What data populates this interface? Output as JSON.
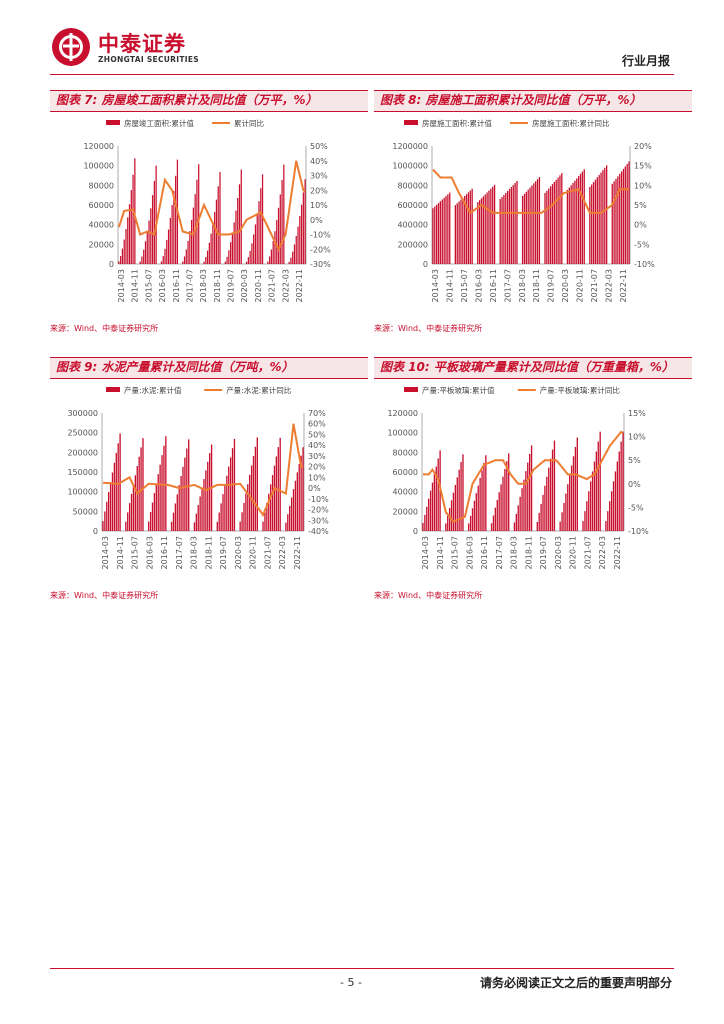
{
  "header": {
    "company_cn": "中泰证券",
    "company_en": "ZHONGTAI SECURITIES",
    "report_type": "行业月报"
  },
  "charts": [
    {
      "title": "图表 7: 房屋竣工面积累计及同比值（万平，%）",
      "source": "来源：Wind、中泰证券研究所",
      "bar_name": "房屋竣工面积:累计值",
      "line_name": "累计同比",
      "left_ticks": [
        "0",
        "20000",
        "40000",
        "60000",
        "80000",
        "100000",
        "120000"
      ],
      "right_ticks": [
        "-30%",
        "-20%",
        "-10%",
        "0%",
        "10%",
        "20%",
        "30%",
        "40%",
        "50%"
      ],
      "x_ticks": [
        "2014-03",
        "2014-11",
        "2015-07",
        "2016-03",
        "2016-11",
        "2017-07",
        "2018-03",
        "2018-11",
        "2019-07",
        "2020-03",
        "2020-11",
        "2021-07",
        "2022-03",
        "2022-11"
      ]
    },
    {
      "title": "图表 8: 房屋施工面积累计及同比值（万平，%）",
      "source": "来源：Wind、中泰证券研究所",
      "bar_name": "房屋施工面积:累计值",
      "line_name": "房屋施工面积:累计同比",
      "left_ticks": [
        "0",
        "200000",
        "400000",
        "600000",
        "800000",
        "1000000",
        "1200000"
      ],
      "right_ticks": [
        "-10%",
        "-5%",
        "0%",
        "5%",
        "10%",
        "15%",
        "20%"
      ],
      "x_ticks": [
        "2014-03",
        "2014-11",
        "2015-07",
        "2016-03",
        "2016-11",
        "2017-07",
        "2018-03",
        "2018-11",
        "2019-07",
        "2020-03",
        "2020-11",
        "2021-07",
        "2022-03",
        "2022-11"
      ]
    },
    {
      "title": "图表 9: 水泥产量累计及同比值（万吨，%）",
      "source": "来源：Wind、中泰证券研究所",
      "bar_name": "产量:水泥:累计值",
      "line_name": "产量:水泥:累计同比",
      "left_ticks": [
        "0",
        "50000",
        "100000",
        "150000",
        "200000",
        "250000",
        "300000"
      ],
      "right_ticks": [
        "-40%",
        "-30%",
        "-20%",
        "-10%",
        "0%",
        "10%",
        "20%",
        "30%",
        "40%",
        "50%",
        "60%",
        "70%"
      ],
      "x_ticks": [
        "2014-03",
        "2014-11",
        "2015-07",
        "2016-03",
        "2016-11",
        "2017-07",
        "2018-03",
        "2018-11",
        "2019-07",
        "2020-03",
        "2020-11",
        "2021-07",
        "2022-03",
        "2022-11"
      ]
    },
    {
      "title": "图表 10: 平板玻璃产量累计及同比值（万重量箱，%）",
      "source": "来源：Wind、中泰证券研究所",
      "bar_name": "产量:平板玻璃:累计值",
      "line_name": "产量:平板玻璃:累计同比",
      "left_ticks": [
        "0",
        "20000",
        "40000",
        "60000",
        "80000",
        "100000",
        "120000"
      ],
      "right_ticks": [
        "-10%",
        "-5%",
        "0%",
        "5%",
        "10%",
        "15%"
      ],
      "x_ticks": [
        "2014-03",
        "2014-11",
        "2015-07",
        "2016-03",
        "2016-11",
        "2017-07",
        "2018-03",
        "2018-11",
        "2019-07",
        "2020-03",
        "2020-11",
        "2021-07",
        "2022-03",
        "2022-11"
      ]
    }
  ],
  "chart_data": [
    {
      "type": "bar+line",
      "left_range": [
        0,
        120000
      ],
      "right_range": [
        -30,
        50
      ],
      "year_peaks": [
        107459,
        100039,
        106128,
        101486,
        93550,
        95942,
        91219,
        101111,
        86222
      ],
      "line_points": [
        [
          0,
          -5
        ],
        [
          3,
          6
        ],
        [
          8,
          7
        ],
        [
          12,
          -10
        ],
        [
          16,
          -8
        ],
        [
          20,
          -10
        ],
        [
          24,
          15
        ],
        [
          26,
          27
        ],
        [
          30,
          20
        ],
        [
          36,
          -8
        ],
        [
          42,
          -10
        ],
        [
          48,
          10
        ],
        [
          52,
          0
        ],
        [
          56,
          -10
        ],
        [
          62,
          -10
        ],
        [
          68,
          -8
        ],
        [
          72,
          0
        ],
        [
          80,
          5
        ],
        [
          90,
          -20
        ],
        [
          94,
          -10
        ],
        [
          100,
          40
        ],
        [
          104,
          20
        ],
        [
          112,
          15
        ],
        [
          116,
          0
        ],
        [
          120,
          -15
        ],
        [
          124,
          -20
        ],
        [
          128,
          -5
        ],
        [
          132,
          12
        ]
      ],
      "colors": {
        "bar": "#c8102e",
        "line": "#ed7d31"
      }
    },
    {
      "type": "bar+line",
      "left_range": [
        0,
        1200000
      ],
      "right_range": [
        -10,
        20
      ],
      "year_start": 550000,
      "year_growth": 30000,
      "intra_growth": 0.32,
      "line_points": [
        [
          0,
          14
        ],
        [
          4,
          12
        ],
        [
          10,
          12
        ],
        [
          14,
          8
        ],
        [
          20,
          3
        ],
        [
          26,
          5
        ],
        [
          32,
          3
        ],
        [
          40,
          3
        ],
        [
          50,
          3
        ],
        [
          58,
          3
        ],
        [
          64,
          5
        ],
        [
          70,
          8
        ],
        [
          78,
          9
        ],
        [
          84,
          3
        ],
        [
          90,
          3
        ],
        [
          96,
          5
        ],
        [
          100,
          9
        ],
        [
          104,
          9
        ],
        [
          110,
          9
        ],
        [
          116,
          5
        ],
        [
          120,
          0
        ],
        [
          124,
          -5
        ],
        [
          128,
          -6
        ],
        [
          132,
          -5
        ]
      ],
      "colors": {
        "bar": "#c8102e",
        "line": "#ed7d31"
      }
    },
    {
      "type": "bar+line",
      "left_range": [
        0,
        300000
      ],
      "right_range": [
        -40,
        70
      ],
      "year_peaks": [
        248000,
        236000,
        241000,
        233000,
        220000,
        234000,
        238000,
        237000,
        213000
      ],
      "line_points": [
        [
          0,
          5
        ],
        [
          8,
          4
        ],
        [
          14,
          10
        ],
        [
          18,
          -5
        ],
        [
          24,
          4
        ],
        [
          34,
          3
        ],
        [
          40,
          0
        ],
        [
          48,
          3
        ],
        [
          54,
          -2
        ],
        [
          60,
          3
        ],
        [
          66,
          3
        ],
        [
          72,
          4
        ],
        [
          78,
          -10
        ],
        [
          84,
          -25
        ],
        [
          90,
          0
        ],
        [
          96,
          -5
        ],
        [
          100,
          60
        ],
        [
          104,
          20
        ],
        [
          112,
          15
        ],
        [
          116,
          -5
        ],
        [
          120,
          -10
        ],
        [
          126,
          -15
        ],
        [
          130,
          -5
        ],
        [
          132,
          5
        ]
      ],
      "colors": {
        "bar": "#c8102e",
        "line": "#ed7d31"
      }
    },
    {
      "type": "bar+line",
      "left_range": [
        0,
        120000
      ],
      "right_range": [
        -10,
        15
      ],
      "year_peaks": [
        82000,
        78000,
        77000,
        79000,
        87000,
        92000,
        95000,
        101000,
        101000
      ],
      "line_points": [
        [
          0,
          2
        ],
        [
          3,
          2
        ],
        [
          5,
          3
        ],
        [
          8,
          1
        ],
        [
          12,
          -6
        ],
        [
          16,
          -8
        ],
        [
          22,
          -7
        ],
        [
          26,
          0
        ],
        [
          32,
          4
        ],
        [
          38,
          5
        ],
        [
          42,
          5
        ],
        [
          46,
          2
        ],
        [
          50,
          0
        ],
        [
          54,
          0
        ],
        [
          58,
          3
        ],
        [
          64,
          5
        ],
        [
          70,
          5
        ],
        [
          76,
          2
        ],
        [
          80,
          2
        ],
        [
          86,
          1
        ],
        [
          90,
          2
        ],
        [
          94,
          5
        ],
        [
          98,
          8
        ],
        [
          104,
          11
        ],
        [
          108,
          10
        ],
        [
          112,
          8
        ],
        [
          116,
          0
        ],
        [
          120,
          -3
        ],
        [
          126,
          -6
        ],
        [
          130,
          -9
        ]
      ],
      "colors": {
        "bar": "#c8102e",
        "line": "#ed7d31"
      }
    }
  ],
  "footer": {
    "page": "- 5 -",
    "disclaimer": "请务必阅读正文之后的重要声明部分"
  }
}
